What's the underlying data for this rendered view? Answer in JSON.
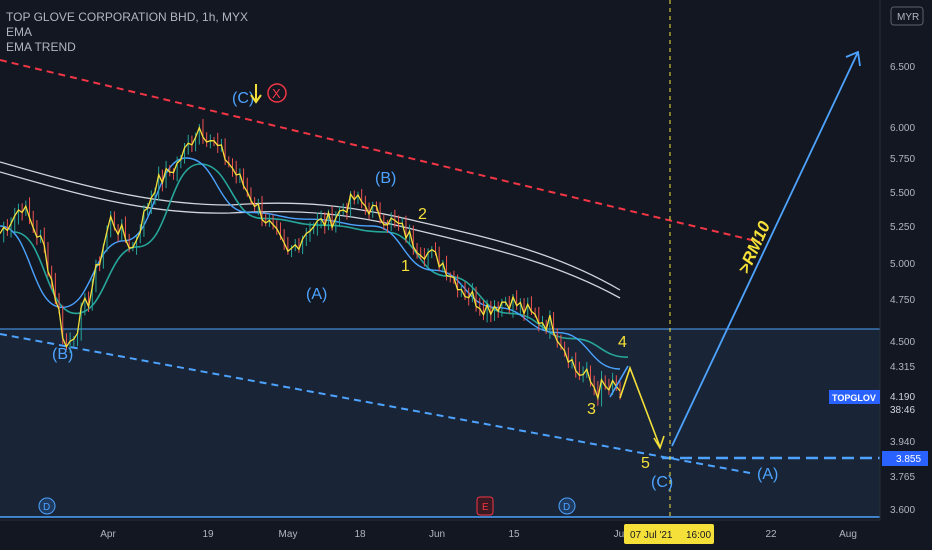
{
  "header": {
    "title": "TOP GLOVE CORPORATION BHD, 1h, MYX",
    "indicators": [
      "EMA",
      "EMA TREND"
    ]
  },
  "currency_button": "MYR",
  "price_badges": {
    "symbol": "TOPGLOV",
    "last": "4.190",
    "countdown": "38:46",
    "target": "3.855"
  },
  "crosshair": {
    "date_label": "07 Jul '21",
    "time_label": "16:00"
  },
  "annotations": {
    "target_text": ">RM10",
    "waves": [
      {
        "label": "(C)",
        "color": "blue"
      },
      {
        "label": "(B)",
        "color": "blue"
      },
      {
        "label": "(A)",
        "color": "blue"
      },
      {
        "label": "(B)",
        "color": "blue"
      },
      {
        "label": "1",
        "color": "yellow"
      },
      {
        "label": "2",
        "color": "yellow"
      },
      {
        "label": "3",
        "color": "yellow"
      },
      {
        "label": "4",
        "color": "yellow"
      },
      {
        "label": "5",
        "color": "yellow"
      },
      {
        "label": "(C)",
        "color": "blue"
      },
      {
        "label": "(A)",
        "color": "blue"
      }
    ],
    "event_markers": [
      "D",
      "E",
      "D"
    ],
    "x_marker": "X"
  },
  "colors": {
    "background": "#131722",
    "price_line": "#f5e03a",
    "ema_fast": "#4aa3ff",
    "ema_green": "#26a69a",
    "channel_white": "#d1d4dc",
    "resistance": "#f23645",
    "support": "#4da3ff",
    "wave_yellow": "#f5e03a",
    "wave_blue": "#4da3ff",
    "badge_symbol": "#2962ff"
  },
  "chart_data": {
    "type": "line",
    "series": [
      {
        "name": "TOPGLOV",
        "x": [
          "Mar 22",
          "Mar 26",
          "Mar 30",
          "Apr 1",
          "Apr 5",
          "Apr 9",
          "Apr 13",
          "Apr 17",
          "Apr 21",
          "Apr 23",
          "Apr 26",
          "Apr 29",
          "May 3",
          "May 6",
          "May 10",
          "May 13",
          "May 17",
          "May 19",
          "May 22",
          "May 26",
          "May 30",
          "Jun 2",
          "Jun 7",
          "Jun 11",
          "Jun 15",
          "Jun 19",
          "Jun 24",
          "Jun 28",
          "Jul 1"
        ],
        "values": [
          5.2,
          5.4,
          5.1,
          4.45,
          4.75,
          5.3,
          5.1,
          5.55,
          5.7,
          6.0,
          5.8,
          5.55,
          5.3,
          5.05,
          5.25,
          5.3,
          5.45,
          5.35,
          5.25,
          5.1,
          5.0,
          4.8,
          4.7,
          4.75,
          4.65,
          4.6,
          4.3,
          4.2,
          4.19
        ]
      },
      {
        "name": "EMA",
        "x": [
          "Mar 22",
          "Apr 1",
          "Apr 13",
          "Apr 23",
          "May 3",
          "May 13",
          "May 22",
          "Jun 2",
          "Jun 15",
          "Jun 24",
          "Jul 1"
        ],
        "values": [
          5.25,
          4.7,
          5.15,
          5.75,
          5.35,
          5.3,
          5.25,
          4.95,
          4.7,
          4.55,
          4.3
        ]
      }
    ],
    "y_ticks": [
      "6.500",
      "6.000",
      "5.750",
      "5.500",
      "5.250",
      "5.000",
      "4.750",
      "4.500",
      "4.315",
      "3.940",
      "3.765",
      "3.600"
    ],
    "x_ticks": [
      "Apr",
      "19",
      "May",
      "18",
      "Jun",
      "15",
      "Jul",
      "22",
      "Aug"
    ],
    "ylim": [
      3.6,
      6.9
    ],
    "horizontal_levels": [
      4.56,
      3.855
    ],
    "grid": false
  }
}
